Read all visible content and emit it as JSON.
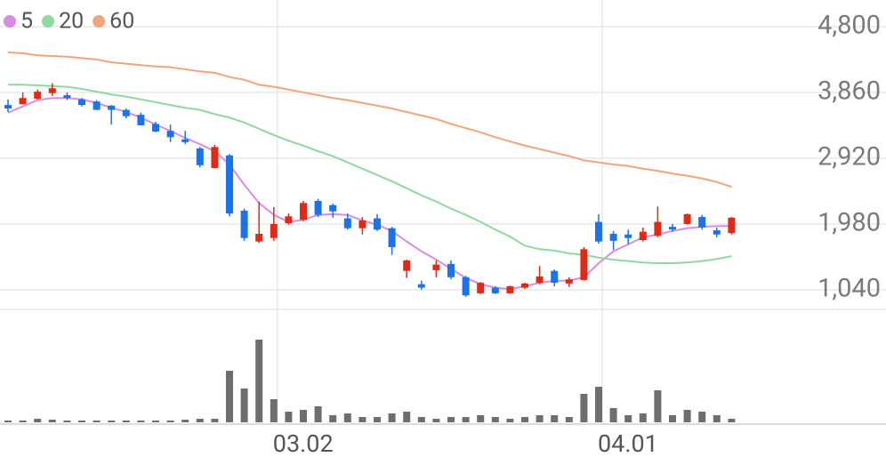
{
  "chart_data": {
    "type": "candlestick",
    "categories": [
      null,
      null,
      null,
      null,
      null,
      null,
      null,
      null,
      null,
      null,
      null,
      null,
      null,
      null,
      null,
      null,
      null,
      null,
      "03.02",
      null,
      null,
      null,
      null,
      null,
      null,
      null,
      null,
      null,
      null,
      null,
      null,
      null,
      null,
      null,
      null,
      null,
      null,
      null,
      null,
      null,
      "04.01",
      null,
      null,
      null,
      null,
      null,
      null,
      null,
      null,
      null
    ],
    "open": [
      3680,
      3690,
      3770,
      3850,
      3820,
      3760,
      3730,
      3670,
      3610,
      3540,
      3410,
      3310,
      3190,
      3060,
      2780,
      2960,
      2170,
      1730,
      1780,
      1990,
      2040,
      2310,
      2250,
      2060,
      1920,
      2060,
      1920,
      1310,
      1120,
      1320,
      1410,
      1220,
      990,
      1070,
      990,
      1070,
      1140,
      1310,
      1130,
      1180,
      2010,
      1840,
      1830,
      1750,
      1810,
      1940,
      1980,
      2080,
      1890,
      1850
    ],
    "high": [
      3760,
      3860,
      3900,
      3990,
      3860,
      3780,
      3750,
      3680,
      3630,
      3570,
      3440,
      3400,
      3310,
      3080,
      3110,
      2980,
      2200,
      2300,
      2220,
      2130,
      2310,
      2340,
      2270,
      2130,
      2080,
      2120,
      1940,
      1470,
      1170,
      1460,
      1460,
      1240,
      1150,
      1090,
      1100,
      1140,
      1380,
      1330,
      1220,
      1650,
      2120,
      1880,
      1900,
      1930,
      2230,
      1980,
      2130,
      2110,
      1930,
      2080
    ],
    "low": [
      3580,
      3690,
      3760,
      3810,
      3750,
      3660,
      3610,
      3400,
      3490,
      3390,
      3290,
      3150,
      3120,
      2790,
      2770,
      2090,
      1740,
      1710,
      1740,
      1970,
      2020,
      2080,
      2070,
      1900,
      1830,
      1880,
      1540,
      1210,
      1040,
      1220,
      1190,
      940,
      980,
      980,
      980,
      1050,
      1120,
      1090,
      1080,
      1170,
      1700,
      1610,
      1690,
      1730,
      1790,
      1870,
      1970,
      1900,
      1790,
      1830
    ],
    "close": [
      3630,
      3780,
      3870,
      3920,
      3780,
      3680,
      3610,
      3610,
      3520,
      3390,
      3300,
      3220,
      3150,
      2820,
      3080,
      2130,
      1780,
      1840,
      1980,
      2090,
      2280,
      2110,
      2160,
      1920,
      2030,
      1900,
      1650,
      1460,
      1070,
      1400,
      1220,
      960,
      1140,
      990,
      1090,
      1130,
      1230,
      1140,
      1190,
      1620,
      1730,
      1740,
      1780,
      1870,
      2010,
      1900,
      2120,
      1930,
      1830,
      2070
    ],
    "up_color": "#e02a16",
    "down_color": "#1a73e8",
    "series": [
      {
        "name": "5",
        "color": "#d98be8",
        "values": [
          3570,
          3660,
          3750,
          3780,
          3780,
          3760,
          3710,
          3640,
          3580,
          3500,
          3400,
          3310,
          3210,
          3120,
          3020,
          2830,
          2540,
          2280,
          2110,
          2010,
          2040,
          2110,
          2120,
          2110,
          2030,
          1970,
          1880,
          1730,
          1590,
          1470,
          1340,
          1210,
          1120,
          1070,
          1050,
          1090,
          1140,
          1170,
          1170,
          1220,
          1420,
          1590,
          1690,
          1790,
          1830,
          1880,
          1920,
          1940,
          1950,
          1950
        ]
      },
      {
        "name": "20",
        "color": "#8fd8a0",
        "values": [
          3970,
          3970,
          3960,
          3950,
          3940,
          3910,
          3870,
          3830,
          3800,
          3760,
          3720,
          3680,
          3640,
          3610,
          3550,
          3500,
          3430,
          3340,
          3250,
          3170,
          3100,
          3020,
          2950,
          2860,
          2770,
          2680,
          2590,
          2490,
          2390,
          2300,
          2200,
          2110,
          2010,
          1900,
          1800,
          1670,
          1620,
          1600,
          1560,
          1540,
          1500,
          1470,
          1450,
          1430,
          1420,
          1420,
          1430,
          1450,
          1480,
          1520
        ]
      },
      {
        "name": "60",
        "color": "#f2a47a",
        "values": [
          4430,
          4420,
          4390,
          4380,
          4370,
          4350,
          4330,
          4290,
          4270,
          4250,
          4230,
          4220,
          4190,
          4160,
          4140,
          4080,
          4040,
          3970,
          3940,
          3900,
          3860,
          3820,
          3780,
          3750,
          3710,
          3670,
          3630,
          3580,
          3530,
          3480,
          3410,
          3350,
          3290,
          3220,
          3160,
          3100,
          3050,
          3000,
          2950,
          2890,
          2860,
          2830,
          2810,
          2770,
          2740,
          2700,
          2670,
          2630,
          2580,
          2510
        ]
      }
    ],
    "ylim": [
      760,
      5180
    ],
    "yticks": [
      {
        "value": 1040,
        "label": "1,040"
      },
      {
        "value": 1980,
        "label": "1,980"
      },
      {
        "value": 2920,
        "label": "2,920"
      },
      {
        "value": 3860,
        "label": "3,860"
      },
      {
        "value": 4800,
        "label": "4,800"
      }
    ],
    "volume": [
      2,
      2,
      4,
      3,
      2,
      2,
      2,
      2,
      2,
      2,
      2,
      2,
      3,
      4,
      4,
      58,
      38,
      93,
      26,
      12,
      14,
      18,
      8,
      10,
      6,
      6,
      10,
      12,
      6,
      4,
      6,
      6,
      8,
      6,
      4,
      6,
      8,
      8,
      6,
      32,
      40,
      16,
      8,
      10,
      36,
      8,
      14,
      12,
      8,
      4
    ],
    "volume_color": "#6e6e6e",
    "volume_ylim": [
      0,
      100
    ],
    "grid": true,
    "legend": "top-left"
  }
}
